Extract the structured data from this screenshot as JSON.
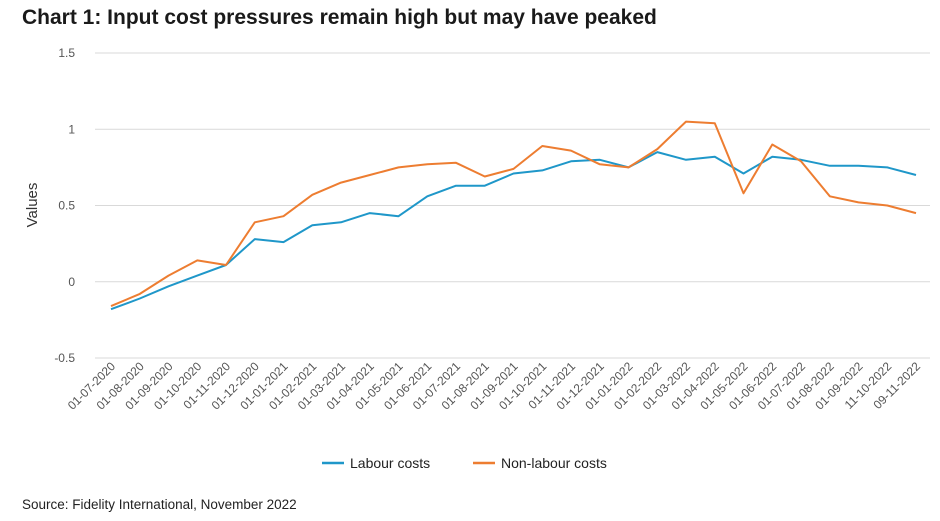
{
  "chart_data": {
    "type": "line",
    "title": "Chart 1: Input cost pressures remain high but may have peaked",
    "xlabel": "",
    "ylabel": "Values",
    "ylim": [
      -0.5,
      1.5
    ],
    "yticks": [
      "1.5",
      "1",
      "0.5",
      "0",
      "-0.5"
    ],
    "ytick_values": [
      1.5,
      1,
      0.5,
      0,
      -0.5
    ],
    "grid": true,
    "legend_position": "bottom",
    "x": [
      "01-07-2020",
      "01-08-2020",
      "01-09-2020",
      "01-10-2020",
      "01-11-2020",
      "01-12-2020",
      "01-01-2021",
      "01-02-2021",
      "01-03-2021",
      "01-04-2021",
      "01-05-2021",
      "01-06-2021",
      "01-07-2021",
      "01-08-2021",
      "01-09-2021",
      "01-10-2021",
      "01-11-2021",
      "01-12-2021",
      "01-01-2022",
      "01-02-2022",
      "01-03-2022",
      "01-04-2022",
      "01-05-2022",
      "01-06-2022",
      "01-07-2022",
      "01-08-2022",
      "01-09-2022",
      "11-10-2022",
      "09-11-2022"
    ],
    "series": [
      {
        "name": "Labour costs",
        "color": "#1f97c9",
        "values": [
          -0.18,
          -0.11,
          -0.03,
          0.04,
          0.11,
          0.28,
          0.26,
          0.37,
          0.39,
          0.45,
          0.43,
          0.56,
          0.63,
          0.63,
          0.71,
          0.73,
          0.79,
          0.8,
          0.75,
          0.85,
          0.8,
          0.82,
          0.71,
          0.82,
          0.8,
          0.76,
          0.76,
          0.75,
          0.7
        ]
      },
      {
        "name": "Non-labour costs",
        "color": "#ed7d31",
        "values": [
          -0.16,
          -0.08,
          0.04,
          0.14,
          0.11,
          0.39,
          0.43,
          0.57,
          0.65,
          0.7,
          0.75,
          0.77,
          0.78,
          0.69,
          0.74,
          0.89,
          0.86,
          0.77,
          0.75,
          0.87,
          1.05,
          1.04,
          0.58,
          0.9,
          0.79,
          0.56,
          0.52,
          0.5,
          0.45
        ]
      }
    ]
  },
  "source": "Source: Fidelity International, November 2022"
}
